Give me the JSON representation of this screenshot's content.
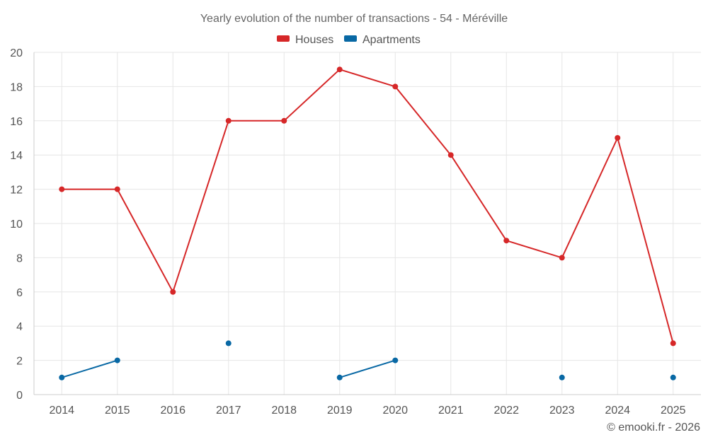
{
  "chart_data": {
    "type": "line",
    "title": "Yearly evolution of the number of transactions - 54 - Méréville",
    "categories": [
      "2014",
      "2015",
      "2016",
      "2017",
      "2018",
      "2019",
      "2020",
      "2021",
      "2022",
      "2023",
      "2024",
      "2025"
    ],
    "ylim": [
      0,
      20
    ],
    "yticks": [
      0,
      2,
      4,
      6,
      8,
      10,
      12,
      14,
      16,
      18,
      20
    ],
    "grid": true,
    "legend": "top-center",
    "series": [
      {
        "name": "Houses",
        "color": "#d62728",
        "values": [
          12,
          12,
          6,
          16,
          16,
          19,
          18,
          14,
          9,
          8,
          15,
          3
        ]
      },
      {
        "name": "Apartments",
        "color": "#0868a4",
        "values": [
          1,
          2,
          null,
          3,
          null,
          1,
          2,
          null,
          null,
          1,
          null,
          1
        ]
      }
    ]
  },
  "credit": "© emooki.fr - 2026"
}
